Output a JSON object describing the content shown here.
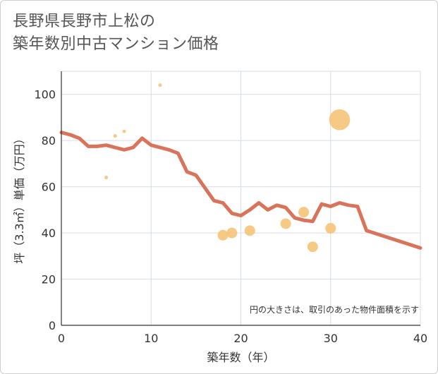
{
  "title": {
    "line1": "長野県長野市上松の",
    "line2": "築年数別中古マンション価格"
  },
  "chart_data": {
    "type": "scatter",
    "title": "長野県長野市上松の築年数別中古マンション価格",
    "xlabel": "築年数（年）",
    "ylabel": "坪（3.3㎡）単価（万円）",
    "xlim": [
      0,
      40
    ],
    "ylim": [
      0,
      110
    ],
    "x_ticks": [
      0,
      10,
      20,
      30,
      40
    ],
    "y_ticks": [
      0,
      20,
      40,
      60,
      80,
      100
    ],
    "grid": true,
    "note": "円の大きさは、取引のあった物件面積を示す",
    "bubble_color": "#f5c478",
    "line_color": "#d9735a",
    "bubbles": [
      {
        "x": 5,
        "y": 64,
        "size": 1
      },
      {
        "x": 6,
        "y": 82,
        "size": 1
      },
      {
        "x": 7,
        "y": 84,
        "size": 1
      },
      {
        "x": 11,
        "y": 104,
        "size": 1
      },
      {
        "x": 18,
        "y": 39,
        "size": 4
      },
      {
        "x": 19,
        "y": 40,
        "size": 4
      },
      {
        "x": 21,
        "y": 41,
        "size": 4
      },
      {
        "x": 25,
        "y": 44,
        "size": 4
      },
      {
        "x": 27,
        "y": 49,
        "size": 4
      },
      {
        "x": 28,
        "y": 34,
        "size": 4
      },
      {
        "x": 30,
        "y": 42,
        "size": 4
      },
      {
        "x": 31,
        "y": 89,
        "size": 12
      }
    ],
    "trend": [
      {
        "x": 0,
        "y": 83.5
      },
      {
        "x": 1,
        "y": 82.5
      },
      {
        "x": 2,
        "y": 81
      },
      {
        "x": 3,
        "y": 77.5
      },
      {
        "x": 4,
        "y": 77.5
      },
      {
        "x": 5,
        "y": 78
      },
      {
        "x": 6,
        "y": 77
      },
      {
        "x": 7,
        "y": 76
      },
      {
        "x": 8,
        "y": 77
      },
      {
        "x": 9,
        "y": 81
      },
      {
        "x": 10,
        "y": 78
      },
      {
        "x": 11,
        "y": 77
      },
      {
        "x": 12,
        "y": 76
      },
      {
        "x": 13,
        "y": 74.5
      },
      {
        "x": 14,
        "y": 66.5
      },
      {
        "x": 15,
        "y": 65
      },
      {
        "x": 16,
        "y": 59.5
      },
      {
        "x": 17,
        "y": 54
      },
      {
        "x": 18,
        "y": 53
      },
      {
        "x": 19,
        "y": 48.5
      },
      {
        "x": 20,
        "y": 47.5
      },
      {
        "x": 21,
        "y": 50
      },
      {
        "x": 22,
        "y": 53
      },
      {
        "x": 23,
        "y": 50
      },
      {
        "x": 24,
        "y": 52
      },
      {
        "x": 25,
        "y": 51
      },
      {
        "x": 26,
        "y": 46.5
      },
      {
        "x": 27,
        "y": 45.5
      },
      {
        "x": 28,
        "y": 45
      },
      {
        "x": 29,
        "y": 52.5
      },
      {
        "x": 30,
        "y": 51.5
      },
      {
        "x": 31,
        "y": 53
      },
      {
        "x": 32,
        "y": 52
      },
      {
        "x": 33,
        "y": 51.5
      },
      {
        "x": 34,
        "y": 41
      },
      {
        "x": 40,
        "y": 33.5
      }
    ]
  }
}
